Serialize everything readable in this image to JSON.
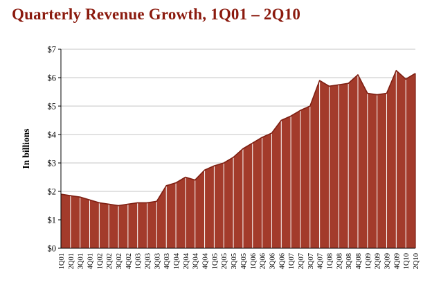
{
  "page": {
    "title": "Quarterly Revenue Growth, 1Q01 – 2Q10"
  },
  "chart_data": {
    "type": "area",
    "title": "Quarterly Revenue Growth, 1Q01 – 2Q10",
    "xlabel": "",
    "ylabel": "In billions",
    "ylim": [
      0,
      7
    ],
    "y_tick_labels": [
      "$0",
      "$1",
      "$2",
      "$3",
      "$4",
      "$5",
      "$6",
      "$7"
    ],
    "grid": "horizontal",
    "legend": "none",
    "categories": [
      "1Q01",
      "2Q01",
      "3Q01",
      "4Q01",
      "1Q02",
      "2Q02",
      "3Q02",
      "4Q02",
      "1Q03",
      "2Q03",
      "3Q03",
      "4Q03",
      "1Q04",
      "2Q04",
      "3Q04",
      "4Q04",
      "1Q05",
      "2Q05",
      "3Q05",
      "4Q05",
      "1Q06",
      "2Q06",
      "3Q06",
      "4Q06",
      "1Q07",
      "2Q07",
      "3Q07",
      "4Q07",
      "1Q08",
      "2Q08",
      "3Q08",
      "4Q08",
      "1Q09",
      "2Q09",
      "3Q09",
      "4Q09",
      "1Q10",
      "2Q10"
    ],
    "values": [
      1.9,
      1.85,
      1.8,
      1.7,
      1.6,
      1.55,
      1.5,
      1.55,
      1.6,
      1.6,
      1.65,
      2.2,
      2.3,
      2.5,
      2.4,
      2.75,
      2.9,
      3.0,
      3.2,
      3.5,
      3.7,
      3.9,
      4.05,
      4.5,
      4.65,
      4.85,
      5.0,
      5.9,
      5.7,
      5.75,
      5.8,
      6.1,
      5.45,
      5.4,
      5.45,
      6.25,
      5.95,
      6.15
    ],
    "colors": {
      "area": "#A33B2B",
      "outline": "#7E1F12",
      "title": "#8B1A0E",
      "grid": "#C6C6C6",
      "axis": "#000000",
      "separator": "#FFFFFF"
    }
  }
}
